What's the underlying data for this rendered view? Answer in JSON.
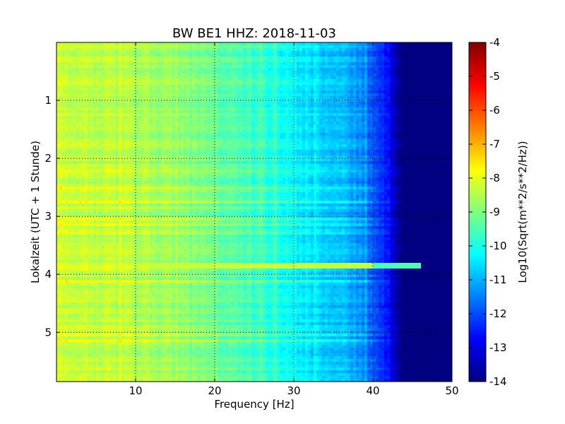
{
  "chart_data": {
    "type": "heatmap",
    "title": "BW BE1 HHZ: 2018-11-03",
    "xlabel": "Frequency [Hz]",
    "ylabel": "Lokalzeit (UTC + 1 Stunde)",
    "xlim": [
      0,
      50
    ],
    "ylim": [
      5.85,
      0
    ],
    "x_ticks": [
      "10",
      "20",
      "30",
      "40",
      "50"
    ],
    "y_ticks": [
      "1",
      "2",
      "3",
      "4",
      "5"
    ],
    "grid": true,
    "grid_style": "dotted",
    "colormap": "jet",
    "colorbar": {
      "label": "Log10(Sqrt(m**2/s**2/Hz))",
      "range": [
        -14,
        -4
      ],
      "ticks": [
        "-4",
        "-5",
        "-6",
        "-7",
        "-8",
        "-9",
        "-10",
        "-11",
        "-12",
        "-13",
        "-14"
      ]
    },
    "spectral_profile": {
      "frequency_hz": [
        0,
        5,
        10,
        15,
        20,
        25,
        30,
        33,
        36,
        38,
        40,
        42,
        43.5,
        50
      ],
      "log10_amplitude": [
        -8.2,
        -8.4,
        -8.5,
        -8.8,
        -9.2,
        -9.7,
        -10.3,
        -10.6,
        -10.9,
        -11.2,
        -11.8,
        -12.6,
        -14,
        -14
      ]
    },
    "events": [
      {
        "time_hours": 3.84,
        "freq_range_hz": [
          1,
          46
        ],
        "log10_amplitude": -8.3
      }
    ]
  },
  "colors": {
    "jet_stops": [
      "#00007f",
      "#0000ff",
      "#007fff",
      "#00ffff",
      "#7fff7f",
      "#ffff00",
      "#ff7f00",
      "#ff0000",
      "#7f0000"
    ]
  }
}
